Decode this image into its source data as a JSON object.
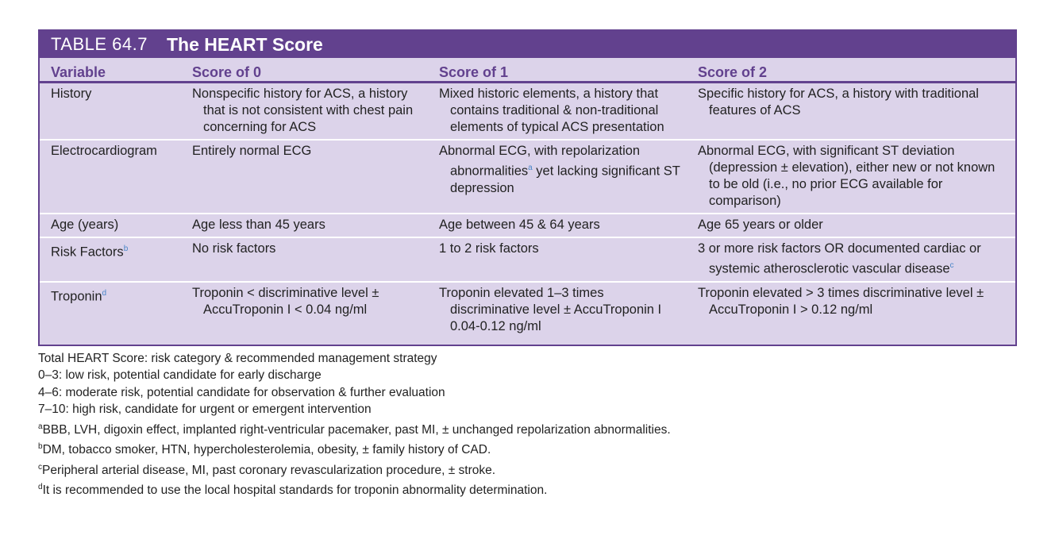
{
  "colors": {
    "accent": "#62418e",
    "body_bg": "#dcd3ea",
    "footnote_mark": "#4a86c8"
  },
  "table": {
    "label": "TABLE 64.7",
    "name": "The HEART Score",
    "headers": [
      "Variable",
      "Score of 0",
      "Score of 1",
      "Score of 2"
    ],
    "rows": [
      {
        "variable": "History",
        "variable_sup": "",
        "s0": "Nonspecific history for ACS, a history that is not consistent with chest pain concerning for ACS",
        "s1": "Mixed historic elements, a history that contains traditional & non-traditional elements of typical ACS presentation",
        "s2": "Specific history for ACS, a history with traditional features of ACS"
      },
      {
        "variable": "Electrocardiogram",
        "variable_sup": "",
        "s0": "Entirely normal ECG",
        "s1_pre": "Abnormal ECG, with repolarization abnormalities",
        "s1_sup": "a",
        "s1_post": " yet lacking significant ST depression",
        "s2": "Abnormal ECG, with significant ST deviation (depression ± elevation), either new or not known to be old (i.e., no prior ECG available for comparison)"
      },
      {
        "variable": "Age (years)",
        "variable_sup": "",
        "s0": "Age less than 45 years",
        "s1": "Age between 45 & 64 years",
        "s2": "Age 65 years or older"
      },
      {
        "variable": "Risk Factors",
        "variable_sup": "b",
        "s0": "No risk factors",
        "s1": "1 to 2 risk factors",
        "s2_pre": "3 or more risk factors OR documented cardiac or systemic atherosclerotic vascular disease",
        "s2_sup": "c"
      },
      {
        "variable": "Troponin",
        "variable_sup": "d",
        "s0": "Troponin < discriminative level ± AccuTroponin I < 0.04 ng/ml",
        "s1": "Troponin elevated 1–3 times discriminative level ± AccuTroponin I 0.04-0.12 ng/ml",
        "s2": "Troponin elevated > 3 times discriminative level ± AccuTroponin I > 0.12 ng/ml"
      }
    ]
  },
  "notes": {
    "lines": [
      "Total HEART Score: risk category & recommended management strategy",
      "0–3: low risk, potential candidate for early discharge",
      "4–6: moderate risk, potential candidate for observation & further evaluation",
      "7–10: high risk, candidate for urgent or emergent intervention"
    ],
    "footnotes": [
      {
        "mark": "a",
        "text": "BBB, LVH, digoxin effect, implanted right-ventricular pacemaker, past MI, ± unchanged repolarization abnormalities."
      },
      {
        "mark": "b",
        "text": "DM, tobacco smoker, HTN, hypercholesterolemia, obesity, ± family history of CAD."
      },
      {
        "mark": "c",
        "text": "Peripheral arterial disease, MI, past coronary revascularization procedure, ± stroke."
      },
      {
        "mark": "d",
        "text": "It is recommended to use the local hospital standards for troponin abnormality determination."
      }
    ]
  }
}
